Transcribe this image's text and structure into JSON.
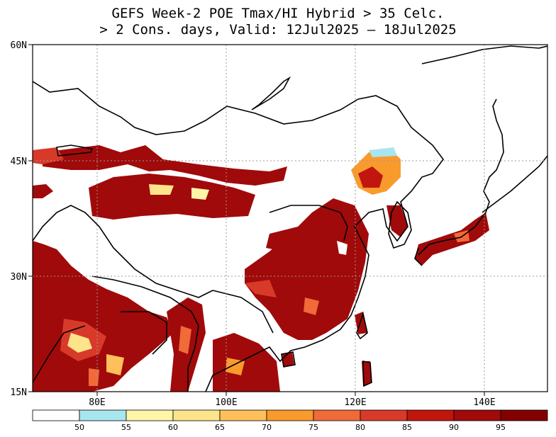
{
  "title": {
    "line1": "GEFS Week-2 POE Tmax/HI Hybrid > 35 Celc.",
    "line2": "> 2 Cons. days, Valid: 12Jul2025 – 18Jul2025"
  },
  "map": {
    "lon_range": [
      70,
      150
    ],
    "lat_range": [
      15,
      60
    ],
    "lat_labels": [
      "60N",
      "45N",
      "30N",
      "15N"
    ],
    "lon_labels": [
      "80E",
      "100E",
      "120E",
      "140E"
    ],
    "gridlines": "dotted"
  },
  "colorbar": {
    "ticks": [
      "50",
      "55",
      "60",
      "65",
      "70",
      "75",
      "80",
      "85",
      "90",
      "95"
    ],
    "colors": [
      "#ffffff",
      "#a8e6ef",
      "#fff5a8",
      "#fde38a",
      "#fdc05a",
      "#f99a2d",
      "#f06a3a",
      "#d83a2a",
      "#c0160e",
      "#a00a0a",
      "#820000"
    ]
  }
}
